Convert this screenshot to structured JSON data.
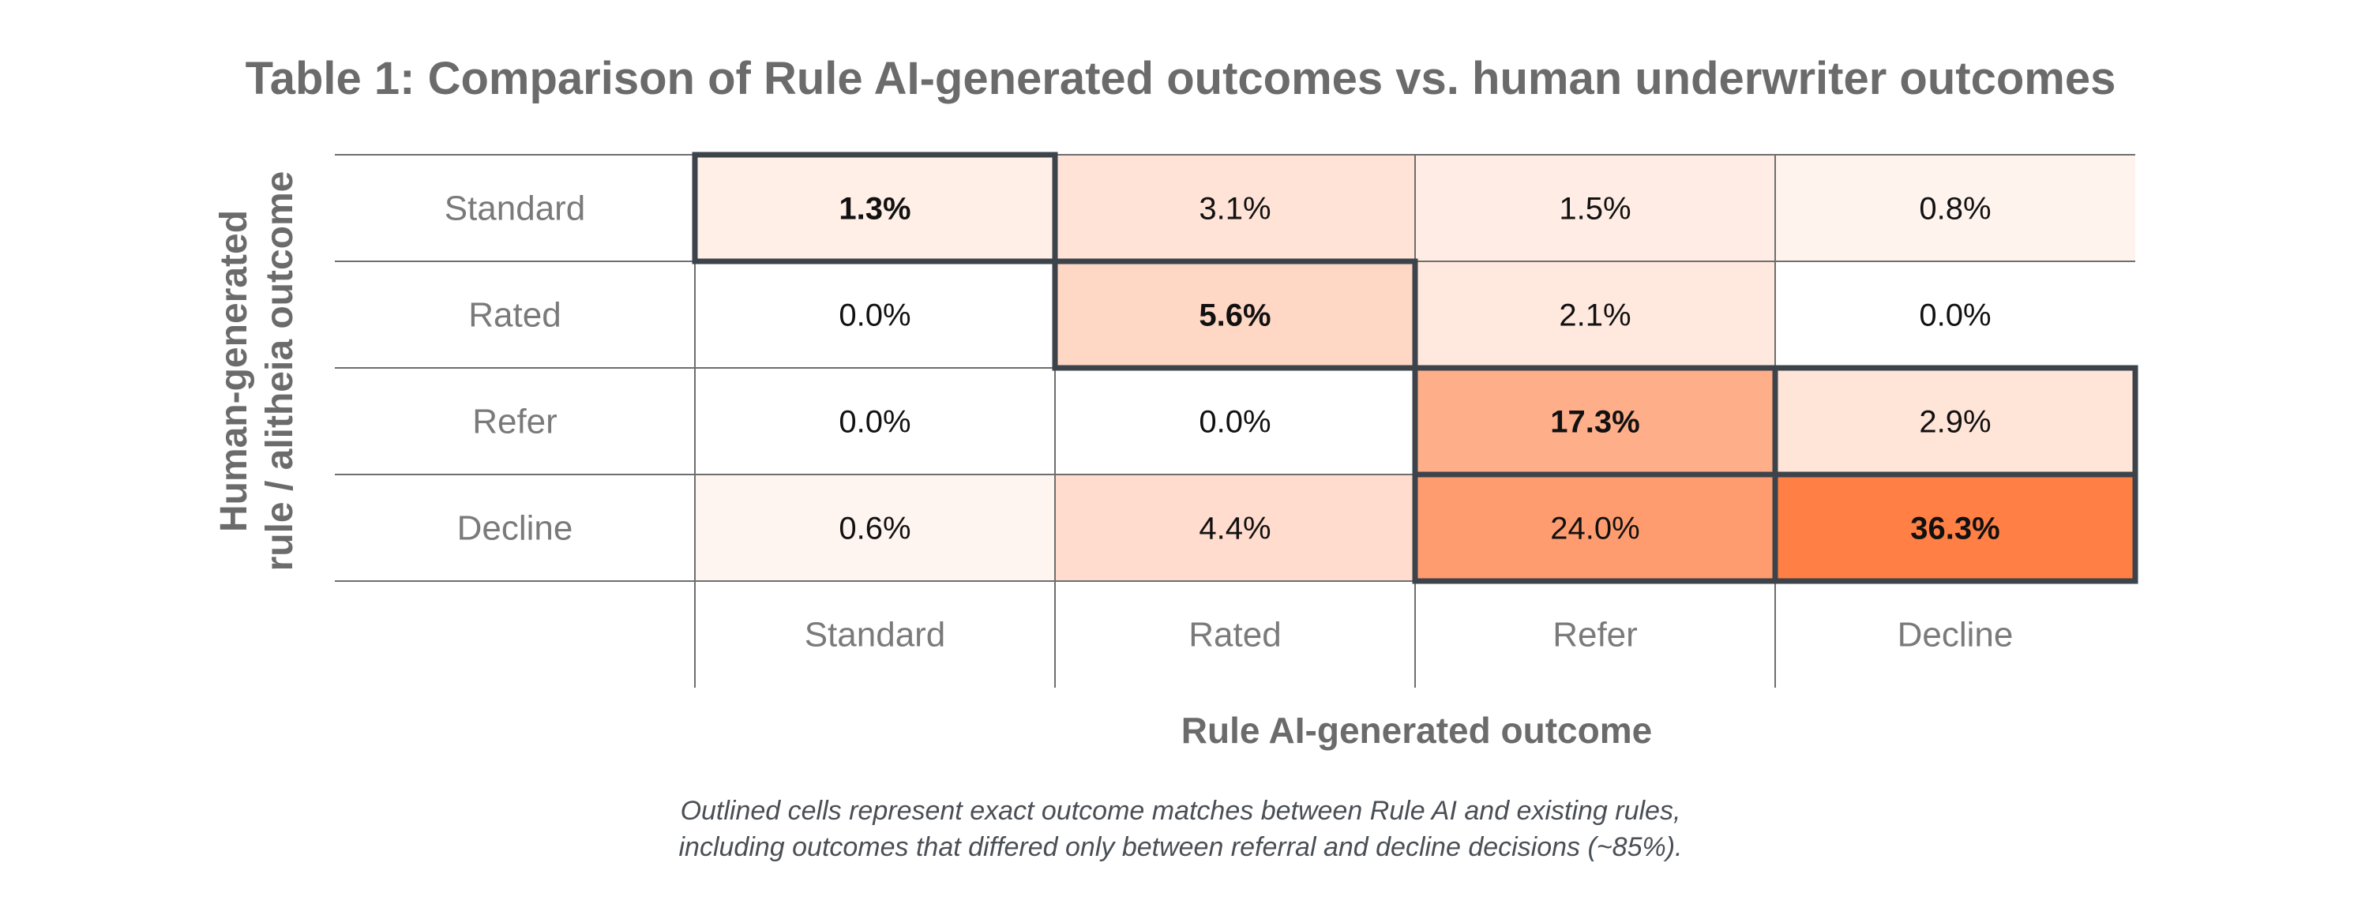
{
  "title": "Table 1: Comparison of Rule AI-generated outcomes vs. human underwriter outcomes",
  "footnote": {
    "line1": "Outlined cells represent exact outcome matches between Rule AI and existing rules,",
    "line2": "including outcomes that differed only between referral and decline decisions (~85%)."
  },
  "chart_data": {
    "type": "heatmap",
    "title": "Table 1: Comparison of Rule AI-generated outcomes vs. human underwriter outcomes",
    "xlabel": "Rule AI-generated outcome",
    "ylabel": [
      "Human-generated",
      "rule / alitheia outcome"
    ],
    "x_categories": [
      "Standard",
      "Rated",
      "Refer",
      "Decline"
    ],
    "y_categories": [
      "Standard",
      "Rated",
      "Refer",
      "Decline"
    ],
    "values": [
      [
        "1.3%",
        "3.1%",
        "1.5%",
        "0.8%"
      ],
      [
        "0.0%",
        "5.6%",
        "2.1%",
        "0.0%"
      ],
      [
        "0.0%",
        "0.0%",
        "17.3%",
        "2.9%"
      ],
      [
        "0.6%",
        "4.4%",
        "24.0%",
        "36.3%"
      ]
    ],
    "bold_cells": [
      [
        0,
        0
      ],
      [
        1,
        1
      ],
      [
        2,
        2
      ],
      [
        3,
        3
      ]
    ],
    "outlined_blocks": [
      {
        "rows": [
          0,
          0
        ],
        "cols": [
          0,
          0
        ]
      },
      {
        "rows": [
          1,
          1
        ],
        "cols": [
          1,
          1
        ]
      },
      {
        "rows": [
          2,
          3
        ],
        "cols": [
          2,
          3
        ]
      }
    ],
    "color_scale": {
      "low": "#ffffff",
      "high": "#ff7f45"
    },
    "outline_color": "#3d434a",
    "grid_color": "#6e6e6e"
  }
}
